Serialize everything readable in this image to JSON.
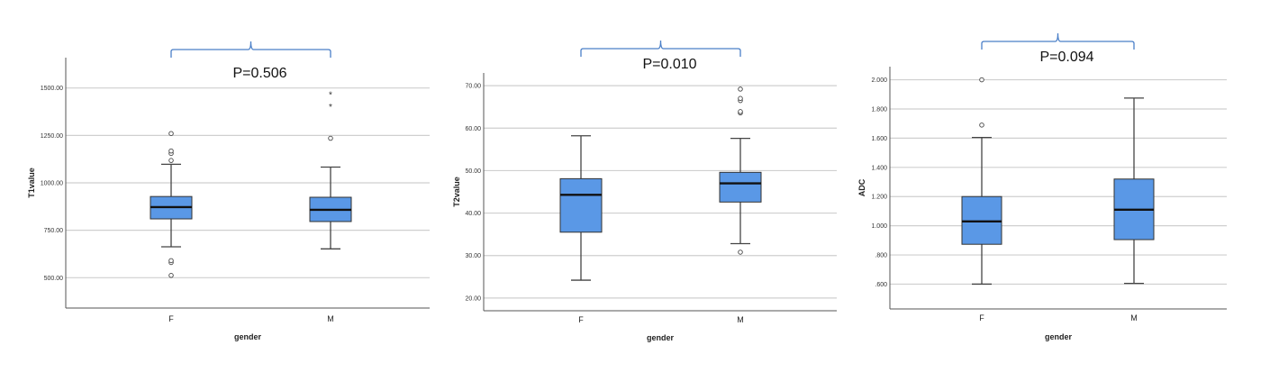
{
  "chart_data": [
    {
      "type": "box",
      "ylabel": "T1value",
      "xlabel": "gender",
      "categories": [
        "F",
        "M"
      ],
      "yticks": [
        "500.00",
        "750.00",
        "1000.00",
        "1250.00",
        "1500.00"
      ],
      "ylim": [
        340,
        1660
      ],
      "annotation": "P=0.506",
      "boxes": [
        {
          "category": "F",
          "min": 663,
          "q1": 810,
          "median": 872,
          "q3": 928,
          "max": 1098,
          "outliers": [
            {
              "v": 512,
              "mark": "o"
            },
            {
              "v": 580,
              "mark": "o"
            },
            {
              "v": 590,
              "mark": "o"
            },
            {
              "v": 1118,
              "mark": "o"
            },
            {
              "v": 1155,
              "mark": "o"
            },
            {
              "v": 1168,
              "mark": "o"
            },
            {
              "v": 1260,
              "mark": "o"
            }
          ]
        },
        {
          "category": "M",
          "min": 652,
          "q1": 796,
          "median": 858,
          "q3": 924,
          "max": 1083,
          "outliers": [
            {
              "v": 1235,
              "mark": "o"
            },
            {
              "v": 1408,
              "mark": "*"
            },
            {
              "v": 1472,
              "mark": "*"
            }
          ]
        }
      ]
    },
    {
      "type": "box",
      "ylabel": "T2value",
      "xlabel": "gender",
      "categories": [
        "F",
        "M"
      ],
      "yticks": [
        "20.00",
        "30.00",
        "40.00",
        "50.00",
        "60.00",
        "70.00"
      ],
      "ylim": [
        17,
        73
      ],
      "annotation": "P=0.010",
      "boxes": [
        {
          "category": "F",
          "min": 24.2,
          "q1": 35.5,
          "median": 44.3,
          "q3": 48.1,
          "max": 58.2,
          "outliers": []
        },
        {
          "category": "M",
          "min": 32.8,
          "q1": 42.6,
          "median": 47.0,
          "q3": 49.6,
          "max": 57.6,
          "outliers": [
            {
              "v": 30.8,
              "mark": "o"
            },
            {
              "v": 63.6,
              "mark": "o"
            },
            {
              "v": 63.9,
              "mark": "o"
            },
            {
              "v": 66.5,
              "mark": "o"
            },
            {
              "v": 67.0,
              "mark": "o"
            },
            {
              "v": 69.2,
              "mark": "o"
            }
          ]
        }
      ]
    },
    {
      "type": "box",
      "ylabel": "ADC",
      "xlabel": "gender",
      "categories": [
        "F",
        "M"
      ],
      "yticks": [
        ".600",
        ".800",
        "1.000",
        "1.200",
        "1.400",
        "1.600",
        "1.800",
        "2.000"
      ],
      "ylim": [
        0.43,
        2.09
      ],
      "annotation": "P=0.094",
      "boxes": [
        {
          "category": "F",
          "min": 0.6,
          "q1": 0.873,
          "median": 1.03,
          "q3": 1.2,
          "max": 1.605,
          "outliers": [
            {
              "v": 1.69,
              "mark": "o"
            },
            {
              "v": 2.0,
              "mark": "o"
            }
          ]
        },
        {
          "category": "M",
          "min": 0.605,
          "q1": 0.905,
          "median": 1.11,
          "q3": 1.32,
          "max": 1.875,
          "outliers": []
        }
      ]
    }
  ],
  "colors": {
    "box_fill": "#5a98e6",
    "bracket": "#4a7fc8",
    "grid": "#cfcfcf"
  }
}
